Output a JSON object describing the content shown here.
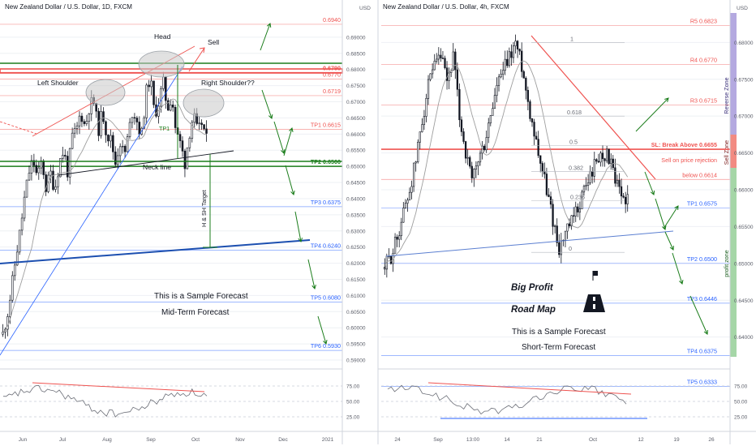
{
  "colors": {
    "up": "#26a69a",
    "down": "#ef5350",
    "candle_up": "#ffffff",
    "candle_down": "#131722",
    "level_red": "#ef5350",
    "level_blue": "#2962ff",
    "green": "#1b7d1b",
    "ma": "#9e9e9e",
    "sell_zone": "#f28b82",
    "reverse_zone": "#b4a9e0",
    "profit_zone": "#a5d6a7",
    "gridline": "#eef0f4"
  },
  "charts": [
    {
      "title": "New Zealand Dollar / U.S. Dollar, 1D, FXCM",
      "currency": "USD",
      "ticks": [
        "0.69000",
        "0.68500",
        "0.68000",
        "0.67500",
        "0.67000",
        "0.66500",
        "0.66000",
        "0.65500",
        "0.65000",
        "0.64500",
        "0.64000",
        "0.63500",
        "0.63000",
        "0.62500",
        "0.62000",
        "0.61500",
        "0.61000",
        "0.60500",
        "0.60000",
        "0.59500",
        "0.59000"
      ],
      "levels": [
        {
          "label": "0.6940",
          "y": 0.694,
          "color": "#ef5350"
        },
        {
          "label": "0.6790",
          "y": 0.679,
          "color": "#ef5350"
        },
        {
          "label": "0.6770",
          "y": 0.677,
          "color": "#ef5350"
        },
        {
          "label": "0.6719",
          "y": 0.6719,
          "color": "#ef5350"
        },
        {
          "label": "TP1 0.6615",
          "y": 0.6615,
          "color": "#ef5350"
        },
        {
          "label": "TP2 0.6500",
          "y": 0.65,
          "color": "#1b7d1b"
        },
        {
          "label": "TP3 0.6375",
          "y": 0.6375,
          "color": "#2962ff"
        },
        {
          "label": "TP4 0.6240",
          "y": 0.624,
          "color": "#2962ff"
        },
        {
          "label": "TP5 0.6080",
          "y": 0.608,
          "color": "#2962ff"
        },
        {
          "label": "TP6 0.5930",
          "y": 0.593,
          "color": "#2962ff"
        }
      ],
      "annotations": {
        "head": "Head",
        "left_shoulder": "Left Shoulder",
        "right_shoulder": "Right Shoulder??",
        "sell": "Sell",
        "tp1": "TP1",
        "neck_line": "Neck line",
        "target": "H & SH Target"
      },
      "forecast_lines": [
        "This is a Sample Forecast",
        "Mid-Term Forecast"
      ],
      "x_labels": [
        "Jun",
        "Jul",
        "Aug",
        "Sep",
        "Oct",
        "Nov",
        "Dec",
        "2021"
      ],
      "osc_ticks": [
        "75.00",
        "50.00",
        "25.00"
      ]
    },
    {
      "title": "New Zealand Dollar / U.S. Dollar, 4h, FXCM",
      "currency": "USD",
      "ticks": [
        "0.68000",
        "0.67500",
        "0.67000",
        "0.66500",
        "0.66000",
        "0.65500",
        "0.65000",
        "0.64500",
        "0.64000"
      ],
      "levels": [
        {
          "label": "R5 0.6823",
          "y": 0.6823,
          "color": "#ef5350"
        },
        {
          "label": "R4 0.6770",
          "y": 0.677,
          "color": "#ef5350"
        },
        {
          "label": "R3 0.6715",
          "y": 0.6715,
          "color": "#ef5350"
        },
        {
          "label": "SL: Break Above 0.6655",
          "y": 0.6655,
          "color": "#ef5350"
        },
        {
          "label": "below 0.6614",
          "y": 0.6614,
          "color": "#ef5350"
        },
        {
          "label": "TP1 0.6575",
          "y": 0.6575,
          "color": "#2962ff"
        },
        {
          "label": "TP2 0.6500",
          "y": 0.65,
          "color": "#2962ff"
        },
        {
          "label": "TP3 0.6446",
          "y": 0.6446,
          "color": "#2962ff"
        },
        {
          "label": "TP4 0.6375",
          "y": 0.6375,
          "color": "#2962ff"
        },
        {
          "label": "TP5 0.6333",
          "y": 0.6333,
          "color": "#2962ff"
        }
      ],
      "annotations": {
        "sell_rejection": "Sell on price rejection",
        "big_profit": "Big Profit",
        "road_map": "Road Map"
      },
      "fib_labels": [
        "1",
        "0.618",
        "0.5",
        "0.382",
        "0.236",
        "0"
      ],
      "zones": [
        "Reverse Zone",
        "Sell Zone",
        "profit zone"
      ],
      "forecast_lines": [
        "This is a Sample Forecast",
        "Short-Term Forecast"
      ],
      "x_labels": [
        "24",
        "Sep",
        "13:00",
        "14",
        "21",
        "Oct",
        "12",
        "19",
        "26"
      ],
      "osc_ticks": [
        "75.00",
        "50.00",
        "25.00"
      ]
    }
  ],
  "chart_data": [
    {
      "type": "candlestick",
      "title": "New Zealand Dollar / U.S. Dollar, 1D, FXCM",
      "ylim": [
        0.588,
        0.6975
      ],
      "x_labels": [
        "Jun",
        "Jul",
        "Aug",
        "Sep",
        "Oct",
        "Nov",
        "Dec",
        "2021"
      ],
      "close_path": [
        0.598,
        0.604,
        0.612,
        0.622,
        0.63,
        0.64,
        0.648,
        0.652,
        0.646,
        0.652,
        0.643,
        0.648,
        0.643,
        0.651,
        0.655,
        0.648,
        0.659,
        0.661,
        0.667,
        0.662,
        0.669,
        0.67,
        0.661,
        0.667,
        0.66,
        0.658,
        0.651,
        0.658,
        0.653,
        0.66,
        0.668,
        0.664,
        0.659,
        0.672,
        0.678,
        0.666,
        0.67,
        0.676,
        0.668,
        0.672,
        0.66,
        0.657,
        0.651,
        0.66,
        0.666,
        0.66,
        0.664,
        0.658
      ],
      "levels": [
        0.694,
        0.679,
        0.677,
        0.6719,
        0.6615,
        0.65,
        0.6375,
        0.624,
        0.608,
        0.593
      ],
      "oscillator": {
        "ticks": [
          75,
          50,
          25
        ]
      }
    },
    {
      "type": "candlestick",
      "title": "New Zealand Dollar / U.S. Dollar, 4h, FXCM",
      "ylim": [
        0.636,
        0.684
      ],
      "x_labels": [
        "24",
        "Sep",
        "13:00",
        "14",
        "21",
        "Oct",
        "12",
        "19",
        "26"
      ],
      "close_path": [
        0.6495,
        0.651,
        0.6535,
        0.657,
        0.66,
        0.664,
        0.6695,
        0.674,
        0.6765,
        0.678,
        0.6745,
        0.678,
        0.67,
        0.665,
        0.661,
        0.664,
        0.666,
        0.67,
        0.674,
        0.676,
        0.678,
        0.68,
        0.677,
        0.672,
        0.668,
        0.664,
        0.66,
        0.656,
        0.652,
        0.654,
        0.6555,
        0.6575,
        0.66,
        0.662,
        0.664,
        0.665,
        0.6645,
        0.661,
        0.659,
        0.659
      ],
      "fib_levels": {
        "1": 0.68,
        "0.618": 0.67,
        "0.5": 0.666,
        "0.382": 0.6625,
        "0.236": 0.6585,
        "0": 0.6515
      },
      "levels": [
        0.6823,
        0.677,
        0.6715,
        0.6655,
        0.6614,
        0.6575,
        0.65,
        0.6446,
        0.6375,
        0.6333
      ],
      "oscillator": {
        "ticks": [
          75,
          50,
          25
        ]
      }
    }
  ]
}
